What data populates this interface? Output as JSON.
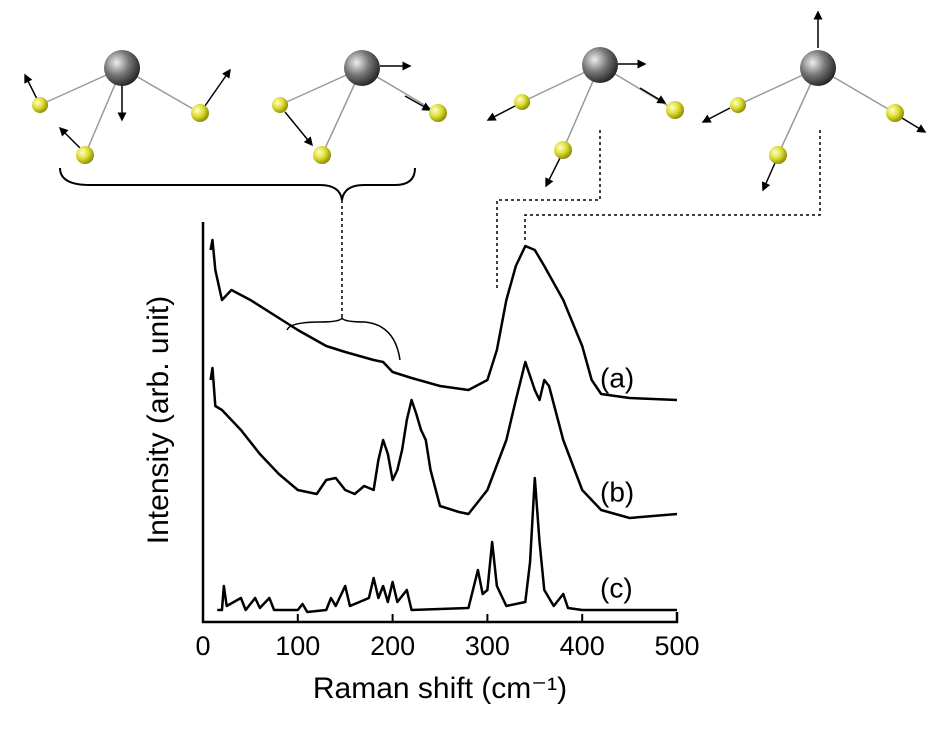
{
  "chart_data": {
    "type": "line",
    "xlabel": "Raman shift (cm⁻¹)",
    "ylabel": "Intensity (arb. unit)",
    "xlim": [
      0,
      500
    ],
    "xticks": [
      0,
      100,
      200,
      300,
      400,
      500
    ],
    "ylim": [
      0,
      100
    ],
    "series": [
      {
        "name": "(a)",
        "color": "#000000",
        "x": [
          8,
          10,
          13,
          20,
          30,
          50,
          80,
          100,
          130,
          150,
          180,
          190,
          200,
          220,
          250,
          280,
          300,
          310,
          320,
          330,
          340,
          350,
          360,
          380,
          400,
          410,
          420,
          450,
          500
        ],
        "values": [
          93,
          95.5,
          88,
          80.5,
          83,
          80.5,
          76,
          73,
          69,
          67.5,
          65.5,
          65,
          62.5,
          61,
          59,
          58,
          60.5,
          68,
          80.5,
          89,
          94,
          93,
          89,
          80.5,
          69,
          60.5,
          57,
          56,
          55.5
        ]
      },
      {
        "name": "(b)",
        "color": "#000000",
        "x": [
          8,
          10,
          13,
          20,
          40,
          60,
          80,
          100,
          120,
          130,
          140,
          150,
          160,
          170,
          180,
          185,
          190,
          195,
          200,
          205,
          210,
          215,
          220,
          225,
          230,
          235,
          240,
          250,
          270,
          280,
          300,
          320,
          330,
          340,
          350,
          355,
          360,
          365,
          380,
          400,
          420,
          450,
          500
        ],
        "values": [
          60.5,
          63.5,
          54,
          53,
          48,
          42,
          37,
          33,
          32,
          35.5,
          36,
          33,
          32,
          34,
          33,
          40.5,
          45.5,
          42,
          35.5,
          38,
          43,
          50.5,
          55.5,
          52,
          48,
          45.5,
          38,
          29,
          27.5,
          27,
          33,
          45.5,
          55.5,
          65,
          58,
          55.5,
          60.5,
          59,
          45.5,
          33,
          28,
          26,
          27
        ]
      },
      {
        "name": "(c)",
        "color": "#000000",
        "x": [
          15,
          20,
          22,
          25,
          40,
          45,
          55,
          60,
          70,
          75,
          100,
          105,
          110,
          130,
          135,
          140,
          150,
          155,
          175,
          180,
          185,
          190,
          195,
          200,
          205,
          215,
          220,
          280,
          290,
          295,
          300,
          305,
          310,
          320,
          340,
          345,
          350,
          355,
          360,
          370,
          380,
          385,
          400,
          500
        ],
        "values": [
          3,
          3,
          9,
          4,
          6,
          3,
          6,
          3.5,
          6,
          3,
          3,
          4.5,
          2.5,
          3,
          6,
          4,
          9,
          4,
          6,
          11,
          6,
          9,
          5,
          10,
          5,
          8,
          3,
          3.5,
          13,
          7,
          8,
          20,
          9,
          4,
          5,
          15,
          36,
          20,
          8,
          4,
          7,
          3.5,
          3,
          3
        ]
      }
    ]
  }
}
